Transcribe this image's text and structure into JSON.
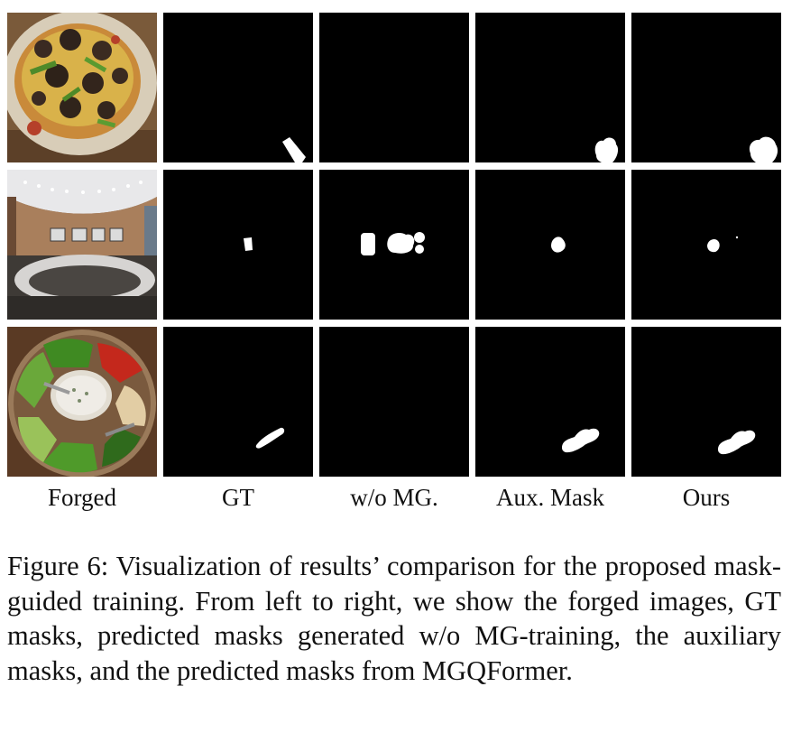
{
  "figure": {
    "columns": [
      "Forged",
      "GT",
      "w/o MG.",
      "Aux. Mask",
      "Ours"
    ],
    "caption": "Figure 6: Visualization of results’ comparison for the proposed mask-guided training. From left to right, we show the forged images, GT masks, predicted masks generated w/o MG-training, the auxiliary masks, and the predicted masks from MGQFormer."
  }
}
